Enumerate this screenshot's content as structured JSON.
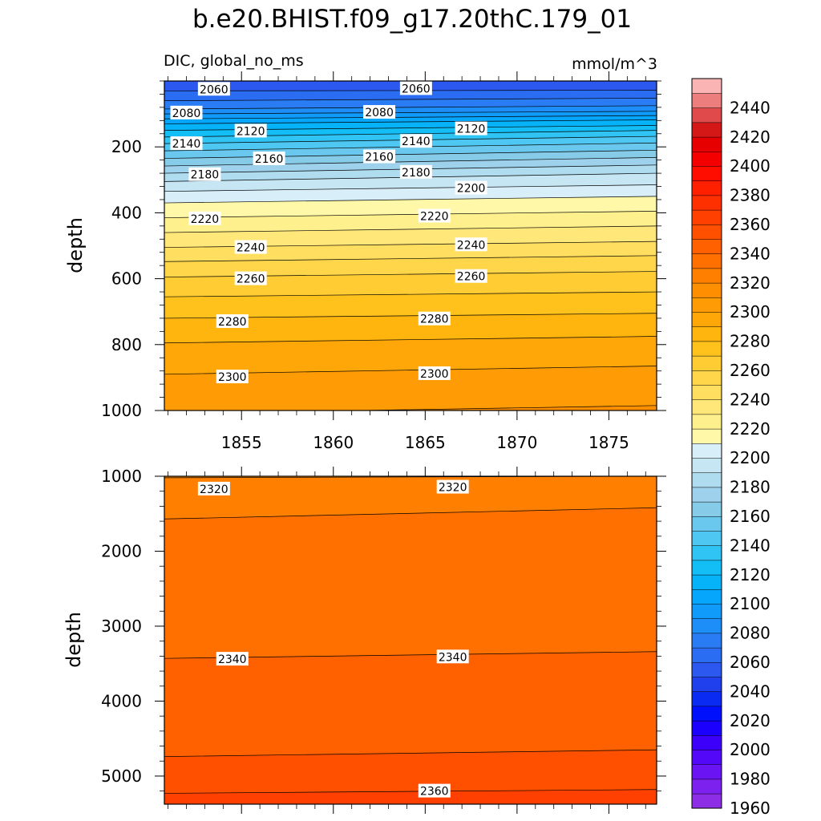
{
  "chart_data": {
    "type": "contour",
    "title": "b.e20.BHIST.f09_g17.20thC.179_01",
    "variable_label": "DIC, global_no_ms",
    "units_label": "mmol/m^3",
    "ylabel": "depth",
    "xlabel": "",
    "x_range": [
      1850.8,
      1877.6
    ],
    "x_ticks": [
      1855,
      1860,
      1865,
      1870,
      1875
    ],
    "x_tick_labels": [
      "1855",
      "1860",
      "1865",
      "1870",
      "1875"
    ],
    "contour_interval": 10,
    "colorbar": {
      "levels": [
        1960,
        1970,
        1980,
        1990,
        2000,
        2010,
        2020,
        2030,
        2040,
        2050,
        2060,
        2070,
        2080,
        2090,
        2100,
        2110,
        2120,
        2130,
        2140,
        2150,
        2160,
        2170,
        2180,
        2190,
        2200,
        2210,
        2220,
        2230,
        2240,
        2250,
        2260,
        2270,
        2280,
        2290,
        2300,
        2310,
        2320,
        2330,
        2340,
        2350,
        2360,
        2370,
        2380,
        2390,
        2400,
        2410,
        2420,
        2430,
        2440,
        2450
      ],
      "tick_labels": [
        "1960",
        "1980",
        "2000",
        "2020",
        "2040",
        "2060",
        "2080",
        "2100",
        "2120",
        "2140",
        "2160",
        "2180",
        "2200",
        "2220",
        "2240",
        "2260",
        "2280",
        "2300",
        "2320",
        "2340",
        "2360",
        "2380",
        "2400",
        "2420",
        "2440"
      ],
      "colors": [
        "#8d2ee6",
        "#7d22ee",
        "#6a14f4",
        "#5408f8",
        "#3c00fa",
        "#1a00fc",
        "#0010fc",
        "#0a2cf2",
        "#2040ee",
        "#2c58f0",
        "#2a6cf2",
        "#2a7cf4",
        "#1d8df7",
        "#109af9",
        "#05a6fb",
        "#06b2f8",
        "#12bef5",
        "#30c4f4",
        "#4ec8f2",
        "#6ac8ee",
        "#86cbe8",
        "#9ed2ec",
        "#b0dcef",
        "#c6e6f4",
        "#d8eef8",
        "#fff8a8",
        "#fff08e",
        "#ffe77a",
        "#ffde60",
        "#ffd54a",
        "#ffcc33",
        "#ffc21d",
        "#ffb40e",
        "#ffa608",
        "#ff9b05",
        "#ff8f00",
        "#ff8000",
        "#ff7000",
        "#ff6100",
        "#ff5000",
        "#ff4000",
        "#ff3000",
        "#ff2000",
        "#ff0e00",
        "#f50000",
        "#e60000",
        "#d41818",
        "#e04a4a",
        "#ec7e7e",
        "#fab4b4"
      ]
    },
    "panels": [
      {
        "name": "upper",
        "ylim": [
          0,
          1000
        ],
        "y_ticks": [
          200,
          400,
          600,
          800,
          1000
        ],
        "y_tick_labels": [
          "200",
          "400",
          "600",
          "800",
          "1000"
        ],
        "show_x_labels": true,
        "isolines": [
          {
            "value": 2060,
            "depth_start": 30,
            "depth_end": 28
          },
          {
            "value": 2070,
            "depth_start": 60,
            "depth_end": 52
          },
          {
            "value": 2080,
            "depth_start": 85,
            "depth_end": 75
          },
          {
            "value": 2090,
            "depth_start": 100,
            "depth_end": 92
          },
          {
            "value": 2100,
            "depth_start": 115,
            "depth_end": 105
          },
          {
            "value": 2110,
            "depth_start": 130,
            "depth_end": 118
          },
          {
            "value": 2120,
            "depth_start": 150,
            "depth_end": 135
          },
          {
            "value": 2130,
            "depth_start": 170,
            "depth_end": 150
          },
          {
            "value": 2140,
            "depth_start": 190,
            "depth_end": 168
          },
          {
            "value": 2150,
            "depth_start": 212,
            "depth_end": 188
          },
          {
            "value": 2160,
            "depth_start": 235,
            "depth_end": 210
          },
          {
            "value": 2170,
            "depth_start": 258,
            "depth_end": 232
          },
          {
            "value": 2180,
            "depth_start": 280,
            "depth_end": 255
          },
          {
            "value": 2190,
            "depth_start": 305,
            "depth_end": 280
          },
          {
            "value": 2200,
            "depth_start": 335,
            "depth_end": 315
          },
          {
            "value": 2210,
            "depth_start": 370,
            "depth_end": 350
          },
          {
            "value": 2220,
            "depth_start": 415,
            "depth_end": 395
          },
          {
            "value": 2230,
            "depth_start": 460,
            "depth_end": 440
          },
          {
            "value": 2240,
            "depth_start": 505,
            "depth_end": 487
          },
          {
            "value": 2250,
            "depth_start": 548,
            "depth_end": 530
          },
          {
            "value": 2260,
            "depth_start": 595,
            "depth_end": 578
          },
          {
            "value": 2270,
            "depth_start": 655,
            "depth_end": 640
          },
          {
            "value": 2280,
            "depth_start": 720,
            "depth_end": 705
          },
          {
            "value": 2290,
            "depth_start": 795,
            "depth_end": 775
          },
          {
            "value": 2300,
            "depth_start": 890,
            "depth_end": 865
          },
          {
            "value": 2310,
            "depth_start": 1010,
            "depth_end": 985
          }
        ],
        "contour_labels": [
          {
            "text": "2060",
            "year": 1853.5,
            "depth": 25
          },
          {
            "text": "2060",
            "year": 1864.5,
            "depth": 23
          },
          {
            "text": "2080",
            "year": 1852.0,
            "depth": 97
          },
          {
            "text": "2080",
            "year": 1862.5,
            "depth": 95
          },
          {
            "text": "2120",
            "year": 1855.5,
            "depth": 152
          },
          {
            "text": "2120",
            "year": 1867.5,
            "depth": 145
          },
          {
            "text": "2140",
            "year": 1852.0,
            "depth": 190
          },
          {
            "text": "2140",
            "year": 1864.5,
            "depth": 183
          },
          {
            "text": "2160",
            "year": 1856.5,
            "depth": 236
          },
          {
            "text": "2160",
            "year": 1862.5,
            "depth": 230
          },
          {
            "text": "2180",
            "year": 1853.0,
            "depth": 284
          },
          {
            "text": "2180",
            "year": 1864.5,
            "depth": 277
          },
          {
            "text": "2200",
            "year": 1867.5,
            "depth": 325
          },
          {
            "text": "2220",
            "year": 1853.0,
            "depth": 418
          },
          {
            "text": "2220",
            "year": 1865.5,
            "depth": 410
          },
          {
            "text": "2240",
            "year": 1855.5,
            "depth": 505
          },
          {
            "text": "2240",
            "year": 1867.5,
            "depth": 497
          },
          {
            "text": "2260",
            "year": 1855.5,
            "depth": 600
          },
          {
            "text": "2260",
            "year": 1867.5,
            "depth": 593
          },
          {
            "text": "2280",
            "year": 1854.5,
            "depth": 730
          },
          {
            "text": "2280",
            "year": 1865.5,
            "depth": 722
          },
          {
            "text": "2300",
            "year": 1854.5,
            "depth": 898
          },
          {
            "text": "2300",
            "year": 1865.5,
            "depth": 888
          }
        ]
      },
      {
        "name": "lower",
        "ylim": [
          1000,
          5375
        ],
        "y_ticks": [
          1000,
          2000,
          3000,
          4000,
          5000
        ],
        "y_tick_labels": [
          "1000",
          "2000",
          "3000",
          "4000",
          "5000"
        ],
        "show_x_labels": false,
        "isolines": [
          {
            "value": 2320,
            "depth_start": 1020,
            "depth_end": 1000
          },
          {
            "value": 2330,
            "depth_start": 1570,
            "depth_end": 1420
          },
          {
            "value": 2340,
            "depth_start": 3430,
            "depth_end": 3340
          },
          {
            "value": 2350,
            "depth_start": 4740,
            "depth_end": 4650
          },
          {
            "value": 2360,
            "depth_start": 5230,
            "depth_end": 5180
          }
        ],
        "contour_labels": [
          {
            "text": "2320",
            "year": 1853.5,
            "depth": 1170
          },
          {
            "text": "2320",
            "year": 1866.5,
            "depth": 1145
          },
          {
            "text": "2340",
            "year": 1854.5,
            "depth": 3440
          },
          {
            "text": "2340",
            "year": 1866.5,
            "depth": 3410
          },
          {
            "text": "2360",
            "year": 1865.5,
            "depth": 5200
          }
        ]
      }
    ]
  }
}
